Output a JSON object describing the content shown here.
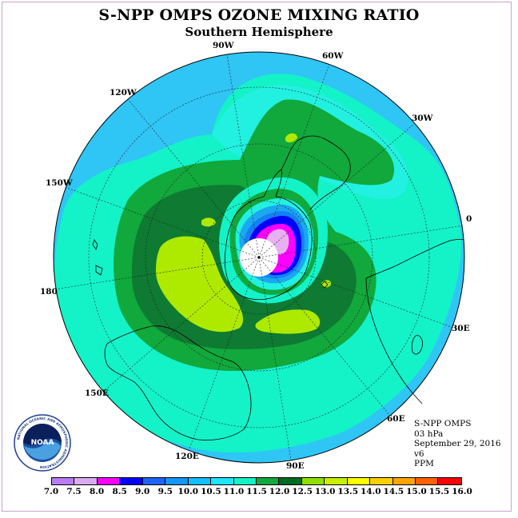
{
  "title": "S-NPP OMPS OZONE MIXING RATIO",
  "subtitle": "Southern Hemisphere",
  "longitude_labels": [
    {
      "key": "90w",
      "text": "90W"
    },
    {
      "key": "60w",
      "text": "60W"
    },
    {
      "key": "30w",
      "text": "30W"
    },
    {
      "key": "0",
      "text": "0"
    },
    {
      "key": "30e",
      "text": "30E"
    },
    {
      "key": "60e",
      "text": "60E"
    },
    {
      "key": "90e",
      "text": "90E"
    },
    {
      "key": "120e",
      "text": "120E"
    },
    {
      "key": "150e",
      "text": "150E"
    },
    {
      "key": "180",
      "text": "180"
    },
    {
      "key": "150w",
      "text": "150W"
    },
    {
      "key": "120w",
      "text": "120W"
    }
  ],
  "info": {
    "instrument": "S-NPP OMPS",
    "level": "03 hPa",
    "date": "September 29, 2016",
    "version": "v6",
    "units": "PPM"
  },
  "logo": {
    "text": "NOAA",
    "ring_text": "NATIONAL OCEANIC AND ATMOSPHERIC ADMINISTRATION"
  },
  "legend": {
    "ticks": [
      "7.0",
      "7.5",
      "8.0",
      "8.5",
      "9.0",
      "9.5",
      "10.0",
      "10.5",
      "11.0",
      "11.5",
      "12.0",
      "12.5",
      "13.0",
      "13.5",
      "14.0",
      "14.5",
      "15.0",
      "15.5",
      "16.0"
    ],
    "colors": [
      "#b97cf2",
      "#dcaaf0",
      "#ff00ff",
      "#0000ff",
      "#1e63f5",
      "#1496f5",
      "#10c0ff",
      "#1ee6ff",
      "#14f2c8",
      "#11a83c",
      "#006a21",
      "#8fe000",
      "#c8f000",
      "#ffff00",
      "#ffd000",
      "#ffa500",
      "#ff6000",
      "#ff0000",
      "#8b4513"
    ]
  },
  "map_colors": {
    "ocean_band": "#2fc5f5",
    "c10_5": "#22f0e0",
    "c11_0": "#14f2c8",
    "c11_5": "#11a83c",
    "c12_0": "#0e7a32",
    "c12_5": "#aeea00",
    "c10_0": "#1aa8f0",
    "c9_5": "#1480f5",
    "c9_0": "#0000ff",
    "c8_5": "#ff00ff",
    "c8_0": "#e8b0f0",
    "pole_hole": "#ffffff"
  }
}
